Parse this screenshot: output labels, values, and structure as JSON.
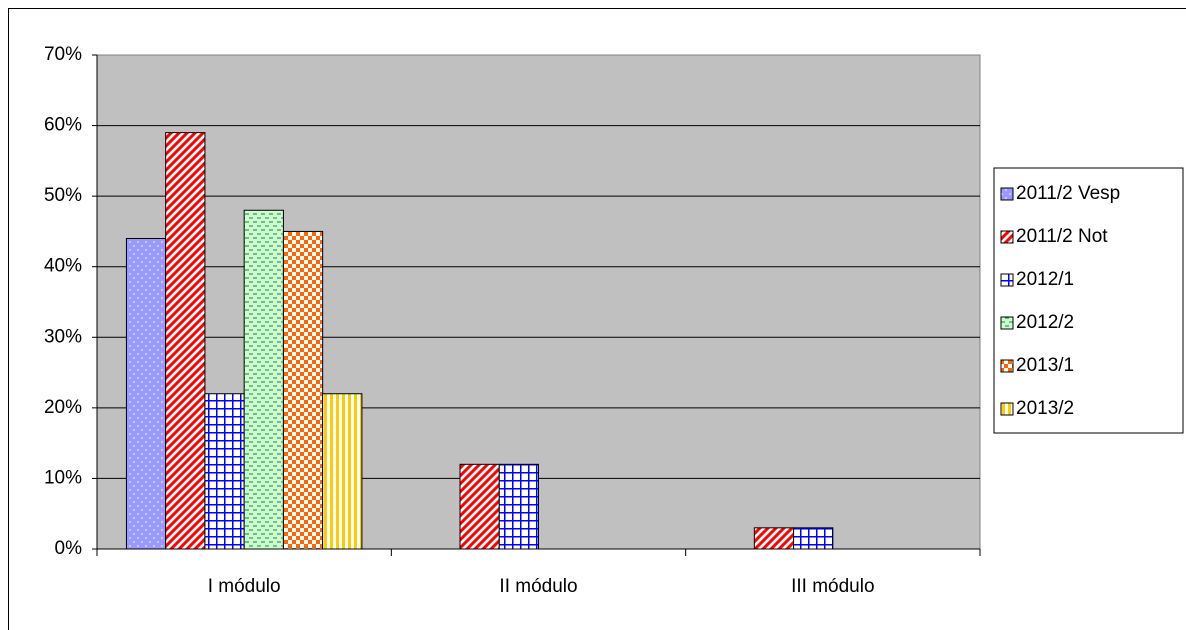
{
  "chart_data": {
    "type": "bar",
    "categories": [
      "I módulo",
      "II módulo",
      "III módulo"
    ],
    "series": [
      {
        "name": "2011/2 Vesp",
        "color": "#9999ff",
        "values": [
          44,
          null,
          null
        ]
      },
      {
        "name": "2011/2 Not",
        "color": "#ff0000",
        "values": [
          59,
          12,
          3
        ]
      },
      {
        "name": "2012/1",
        "color": "#0000ff",
        "values": [
          22,
          12,
          3
        ]
      },
      {
        "name": "2012/2",
        "color": "#339966",
        "values": [
          48,
          null,
          null
        ]
      },
      {
        "name": "2013/1",
        "color": "#ff6600",
        "values": [
          45,
          null,
          null
        ]
      },
      {
        "name": "2013/2",
        "color": "#ffcc00",
        "values": [
          22,
          null,
          null
        ]
      }
    ],
    "ylim": [
      0,
      70
    ],
    "yticks": [
      {
        "value": 0,
        "label": "0%"
      },
      {
        "value": 10,
        "label": "10%"
      },
      {
        "value": 20,
        "label": "20%"
      },
      {
        "value": 30,
        "label": "30%"
      },
      {
        "value": 40,
        "label": "40%"
      },
      {
        "value": 50,
        "label": "50%"
      },
      {
        "value": 60,
        "label": "60%"
      },
      {
        "value": 70,
        "label": "70%"
      }
    ],
    "grid": true,
    "legend": "right"
  }
}
